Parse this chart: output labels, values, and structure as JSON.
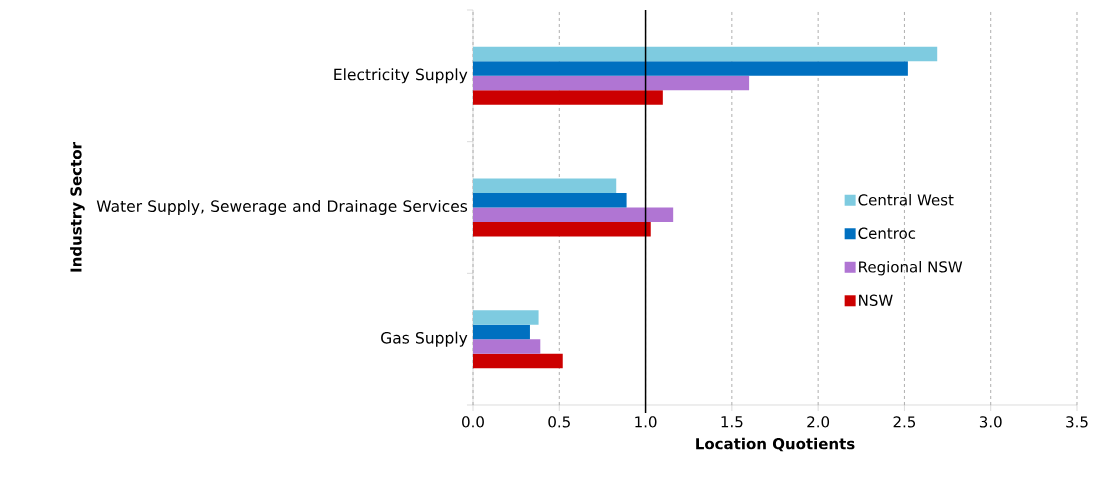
{
  "chart_data": {
    "type": "bar",
    "orientation": "horizontal",
    "xlabel": "Location Quotients",
    "ylabel": "Industry Sector",
    "categories": [
      "Electricity Supply",
      "Water Supply, Sewerage and Drainage Services",
      "Gas Supply"
    ],
    "series": [
      {
        "name": "Central West",
        "color": "#7ecbe0",
        "values": [
          2.69,
          0.83,
          0.38
        ]
      },
      {
        "name": "Centroc",
        "color": "#0070c0",
        "values": [
          2.52,
          0.89,
          0.33
        ]
      },
      {
        "name": "Regional NSW",
        "color": "#b075d3",
        "values": [
          1.6,
          1.16,
          0.39
        ]
      },
      {
        "name": "NSW",
        "color": "#cc0000",
        "values": [
          1.1,
          1.03,
          0.52
        ]
      }
    ],
    "xlim": [
      0,
      3.5
    ],
    "xticks": [
      {
        "value": 0,
        "label": "0.0"
      },
      {
        "value": 0.5,
        "label": "0.5"
      },
      {
        "value": 1,
        "label": "1.0"
      },
      {
        "value": 1.5,
        "label": "1.5"
      },
      {
        "value": 2,
        "label": "2.0"
      },
      {
        "value": 2.5,
        "label": "2.5"
      },
      {
        "value": 3,
        "label": "3.0"
      },
      {
        "value": 3.5,
        "label": "3.5"
      }
    ],
    "ref_lines": [
      {
        "axis": "x",
        "value": 1,
        "color": "#000000"
      }
    ],
    "grid": "x",
    "legend": "right"
  }
}
